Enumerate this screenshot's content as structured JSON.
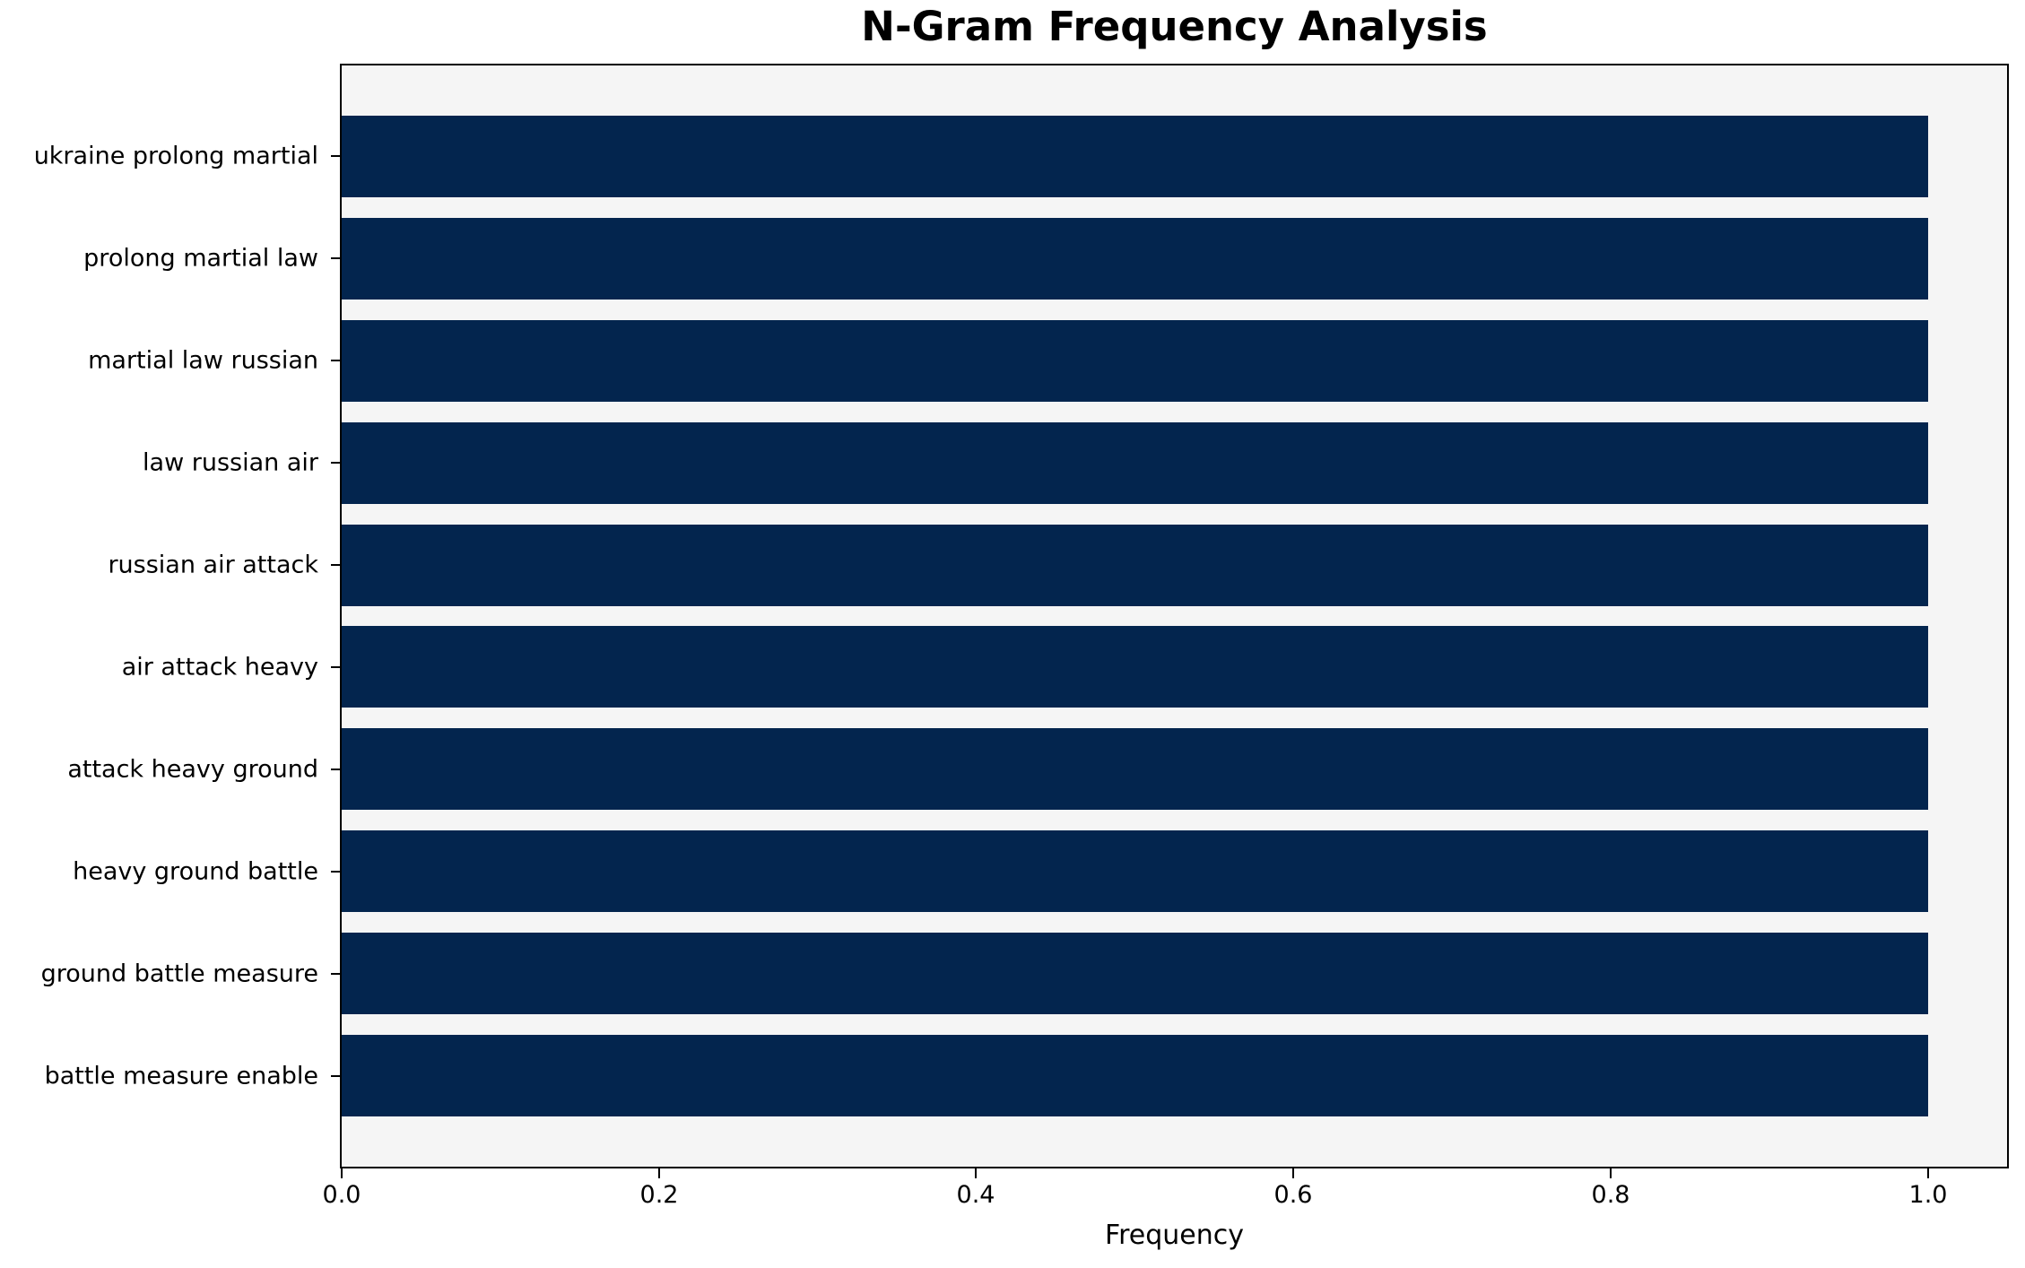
{
  "chart_data": {
    "type": "bar",
    "orientation": "horizontal",
    "title": "N-Gram Frequency Analysis",
    "xlabel": "Frequency",
    "ylabel": "",
    "categories": [
      "ukraine prolong martial",
      "prolong martial law",
      "martial law russian",
      "law russian air",
      "russian air attack",
      "air attack heavy",
      "attack heavy ground",
      "heavy ground battle",
      "ground battle measure",
      "battle measure enable"
    ],
    "values": [
      1.0,
      1.0,
      1.0,
      1.0,
      1.0,
      1.0,
      1.0,
      1.0,
      1.0,
      1.0
    ],
    "xlim": [
      0,
      1.05
    ],
    "xticks": [
      0.0,
      0.2,
      0.4,
      0.6,
      0.8,
      1.0
    ],
    "xtick_labels": [
      "0.0",
      "0.2",
      "0.4",
      "0.6",
      "0.8",
      "1.0"
    ],
    "grid": false,
    "legend": null,
    "colors": {
      "bar": "#03254e",
      "plot_background": "#f5f5f5",
      "figure_background": "#ffffff",
      "axis_line": "#000000",
      "text": "#000000"
    }
  }
}
